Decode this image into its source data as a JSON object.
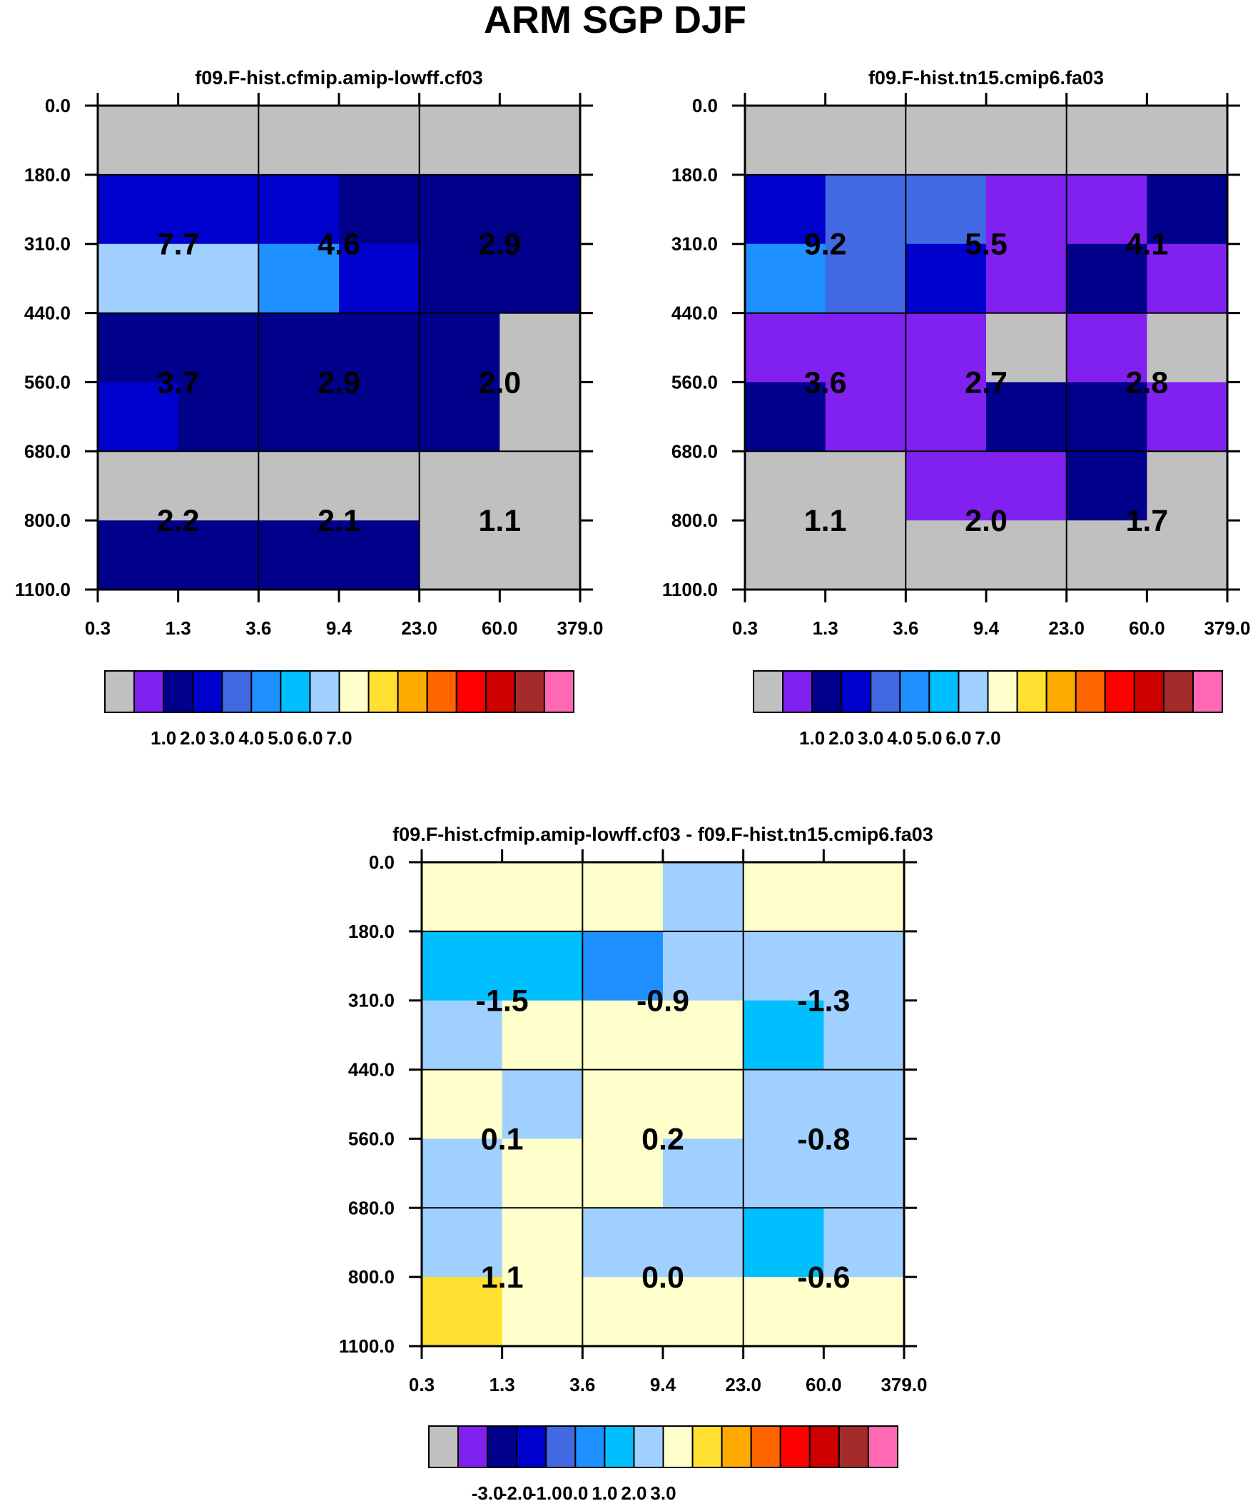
{
  "title": "ARM SGP DJF",
  "chart_data": [
    {
      "type": "heatmap",
      "title": "f09.F-hist.cfmip.amip-lowff.cf03",
      "xticks": [
        "0.3",
        "1.3",
        "3.6",
        "9.4",
        "23.0",
        "60.0",
        "379.0"
      ],
      "yticks": [
        "0.0",
        "180.0",
        "310.0",
        "440.0",
        "560.0",
        "680.0",
        "800.0",
        "1100.0"
      ],
      "cells": [
        [
          0,
          0,
          0,
          0,
          0,
          0
        ],
        [
          3,
          3,
          3,
          2,
          2,
          2
        ],
        [
          7,
          7,
          5,
          3,
          2,
          2
        ],
        [
          2,
          2,
          2,
          2,
          2,
          0
        ],
        [
          3,
          2,
          2,
          2,
          2,
          0
        ],
        [
          0,
          0,
          0,
          0,
          0,
          0
        ],
        [
          2,
          2,
          2,
          2,
          0,
          0
        ]
      ],
      "labels": [
        [
          "7.7",
          "4.6",
          "2.9"
        ],
        [
          "3.7",
          "2.9",
          "2.0"
        ],
        [
          "2.2",
          "2.1",
          "1.1"
        ]
      ],
      "colorbar": {
        "colors": [
          "#c0c0c0",
          "#8021f0",
          "#00008b",
          "#0000cd",
          "#4169e1",
          "#1e90ff",
          "#00bfff",
          "#a0d0ff",
          "#ffffcc",
          "#ffe030",
          "#ffaa00",
          "#ff6600",
          "#ff0000",
          "#cc0000",
          "#a52a2a",
          "#ff69b4"
        ],
        "ticks": [
          "1.0",
          "2.0",
          "3.0",
          "4.0",
          "5.0",
          "6.0",
          "7.0"
        ]
      }
    },
    {
      "type": "heatmap",
      "title": "f09.F-hist.tn15.cmip6.fa03",
      "xticks": [
        "0.3",
        "1.3",
        "3.6",
        "9.4",
        "23.0",
        "60.0",
        "379.0"
      ],
      "yticks": [
        "0.0",
        "180.0",
        "310.0",
        "440.0",
        "560.0",
        "680.0",
        "800.0",
        "1100.0"
      ],
      "cells": [
        [
          0,
          0,
          0,
          0,
          0,
          0
        ],
        [
          3,
          4,
          4,
          1,
          1,
          2
        ],
        [
          5,
          4,
          3,
          1,
          2,
          1
        ],
        [
          1,
          1,
          1,
          0,
          1,
          0
        ],
        [
          2,
          1,
          1,
          2,
          2,
          1
        ],
        [
          0,
          0,
          1,
          1,
          2,
          0
        ],
        [
          0,
          0,
          0,
          0,
          0,
          0
        ]
      ],
      "labels": [
        [
          "9.2",
          "5.5",
          "4.1"
        ],
        [
          "3.6",
          "2.7",
          "2.8"
        ],
        [
          "1.1",
          "2.0",
          "1.7"
        ]
      ],
      "colorbar": {
        "colors": [
          "#c0c0c0",
          "#8021f0",
          "#00008b",
          "#0000cd",
          "#4169e1",
          "#1e90ff",
          "#00bfff",
          "#a0d0ff",
          "#ffffcc",
          "#ffe030",
          "#ffaa00",
          "#ff6600",
          "#ff0000",
          "#cc0000",
          "#a52a2a",
          "#ff69b4"
        ],
        "ticks": [
          "1.0",
          "2.0",
          "3.0",
          "4.0",
          "5.0",
          "6.0",
          "7.0"
        ]
      }
    },
    {
      "type": "heatmap",
      "title": "f09.F-hist.cfmip.amip-lowff.cf03 - f09.F-hist.tn15.cmip6.fa03",
      "xticks": [
        "0.3",
        "1.3",
        "3.6",
        "9.4",
        "23.0",
        "60.0",
        "379.0"
      ],
      "yticks": [
        "0.0",
        "180.0",
        "310.0",
        "440.0",
        "560.0",
        "680.0",
        "800.0",
        "1100.0"
      ],
      "cells": [
        [
          8,
          8,
          8,
          7,
          8,
          8
        ],
        [
          6,
          6,
          5,
          7,
          7,
          7
        ],
        [
          7,
          8,
          8,
          8,
          6,
          7
        ],
        [
          8,
          7,
          8,
          8,
          7,
          7
        ],
        [
          7,
          8,
          8,
          7,
          7,
          7
        ],
        [
          7,
          8,
          7,
          7,
          6,
          7
        ],
        [
          9,
          8,
          8,
          8,
          8,
          8
        ]
      ],
      "labels": [
        [
          "-1.5",
          "-0.9",
          "-1.3"
        ],
        [
          "0.1",
          "0.2",
          "-0.8"
        ],
        [
          "1.1",
          "0.0",
          "-0.6"
        ]
      ],
      "colorbar": {
        "colors": [
          "#c0c0c0",
          "#8021f0",
          "#00008b",
          "#0000cd",
          "#4169e1",
          "#1e90ff",
          "#00bfff",
          "#a0d0ff",
          "#ffffcc",
          "#ffe030",
          "#ffaa00",
          "#ff6600",
          "#ff0000",
          "#cc0000",
          "#a52a2a",
          "#ff69b4"
        ],
        "ticks": [
          "-3.0",
          "-2.0",
          "-1.0",
          "0.0",
          "1.0",
          "2.0",
          "3.0"
        ]
      }
    }
  ]
}
